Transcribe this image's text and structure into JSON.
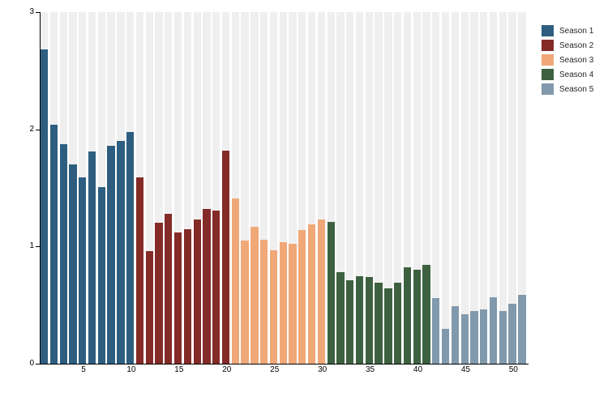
{
  "chart_data": {
    "type": "bar",
    "title": "",
    "xlabel": "",
    "ylabel": "",
    "x_ticks": [
      5,
      10,
      15,
      20,
      25,
      30,
      35,
      40,
      45,
      50
    ],
    "y_ticks": [
      0,
      1,
      2,
      3
    ],
    "ylim": [
      0,
      3
    ],
    "xlim": [
      1,
      51
    ],
    "grid": "vertical-background-stripes",
    "stripe_color": "#efefef",
    "axis_color": "#000000",
    "legend_position": "top-right",
    "series": [
      {
        "name": "Season 1",
        "color": "#2d5e80",
        "start_episode": 1,
        "values": [
          2.68,
          2.04,
          1.87,
          1.7,
          1.59,
          1.81,
          1.51,
          1.86,
          1.9,
          1.98
        ]
      },
      {
        "name": "Season 2",
        "color": "#842b27",
        "start_episode": 11,
        "values": [
          1.59,
          0.96,
          1.2,
          1.28,
          1.12,
          1.15,
          1.23,
          1.32,
          1.31,
          1.82
        ]
      },
      {
        "name": "Season 3",
        "color": "#f0a878",
        "start_episode": 21,
        "values": [
          1.41,
          1.05,
          1.17,
          1.06,
          0.97,
          1.04,
          1.02,
          1.14,
          1.19,
          1.23
        ]
      },
      {
        "name": "Season 4",
        "color": "#3d6140",
        "start_episode": 31,
        "values": [
          1.21,
          0.78,
          0.71,
          0.75,
          0.74,
          0.69,
          0.64,
          0.69,
          0.82,
          0.8,
          0.84
        ]
      },
      {
        "name": "Season 5",
        "color": "#8199ac",
        "start_episode": 42,
        "values": [
          0.56,
          0.3,
          0.49,
          0.42,
          0.45,
          0.46,
          0.57,
          0.45,
          0.51,
          0.59
        ]
      }
    ]
  }
}
